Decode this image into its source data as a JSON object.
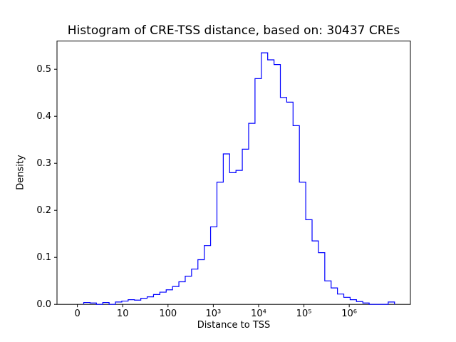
{
  "figure": {
    "title": "Histogram of CRE-TSS distance, based on: 30437 CREs",
    "xlabel": "Distance to TSS",
    "ylabel": "Density"
  },
  "chart_data": {
    "type": "bar",
    "subtype": "histogram-step",
    "title": "Histogram of CRE-TSS distance, based on: 30437 CREs",
    "xlabel": "Distance to TSS",
    "ylabel": "Density",
    "n_samples": 30437,
    "x_scale": "log10-of-distance (symlog-style, 0 tick shown at left)",
    "line_color": "#0000ff",
    "axis_color": "#000000",
    "background_color": "#ffffff",
    "grid": false,
    "legend": false,
    "xlim_log10": [
      -0.45,
      7.35
    ],
    "ylim": [
      0,
      0.56
    ],
    "x_ticks": [
      {
        "u": 0,
        "label": "0"
      },
      {
        "u": 1,
        "label": "10"
      },
      {
        "u": 2,
        "label": "100"
      },
      {
        "u": 3,
        "label": "10³"
      },
      {
        "u": 4,
        "label": "10⁴"
      },
      {
        "u": 5,
        "label": "10⁵"
      },
      {
        "u": 6,
        "label": "10⁶"
      }
    ],
    "y_ticks": [
      {
        "v": 0.0,
        "label": "0.0"
      },
      {
        "v": 0.1,
        "label": "0.1"
      },
      {
        "v": 0.2,
        "label": "0.2"
      },
      {
        "v": 0.3,
        "label": "0.3"
      },
      {
        "v": 0.4,
        "label": "0.4"
      },
      {
        "v": 0.5,
        "label": "0.5"
      }
    ],
    "bin_edges_log10": [
      0.14,
      0.28,
      0.42,
      0.56,
      0.7,
      0.84,
      0.98,
      1.12,
      1.26,
      1.4,
      1.54,
      1.68,
      1.82,
      1.96,
      2.1,
      2.24,
      2.38,
      2.52,
      2.66,
      2.8,
      2.94,
      3.08,
      3.22,
      3.36,
      3.5,
      3.64,
      3.78,
      3.92,
      4.06,
      4.2,
      4.34,
      4.48,
      4.62,
      4.76,
      4.9,
      5.04,
      5.18,
      5.32,
      5.46,
      5.6,
      5.74,
      5.88,
      6.02,
      6.16,
      6.3,
      6.44,
      6.58,
      6.72,
      6.86,
      7.0
    ],
    "densities": [
      0.004,
      0.003,
      0.0,
      0.004,
      0.0,
      0.005,
      0.007,
      0.01,
      0.009,
      0.013,
      0.016,
      0.021,
      0.026,
      0.031,
      0.038,
      0.048,
      0.06,
      0.075,
      0.095,
      0.125,
      0.165,
      0.26,
      0.32,
      0.28,
      0.285,
      0.33,
      0.385,
      0.48,
      0.535,
      0.52,
      0.51,
      0.44,
      0.43,
      0.38,
      0.26,
      0.18,
      0.135,
      0.11,
      0.05,
      0.035,
      0.022,
      0.015,
      0.01,
      0.006,
      0.003,
      0.0,
      0.0,
      0.0,
      0.005
    ]
  }
}
